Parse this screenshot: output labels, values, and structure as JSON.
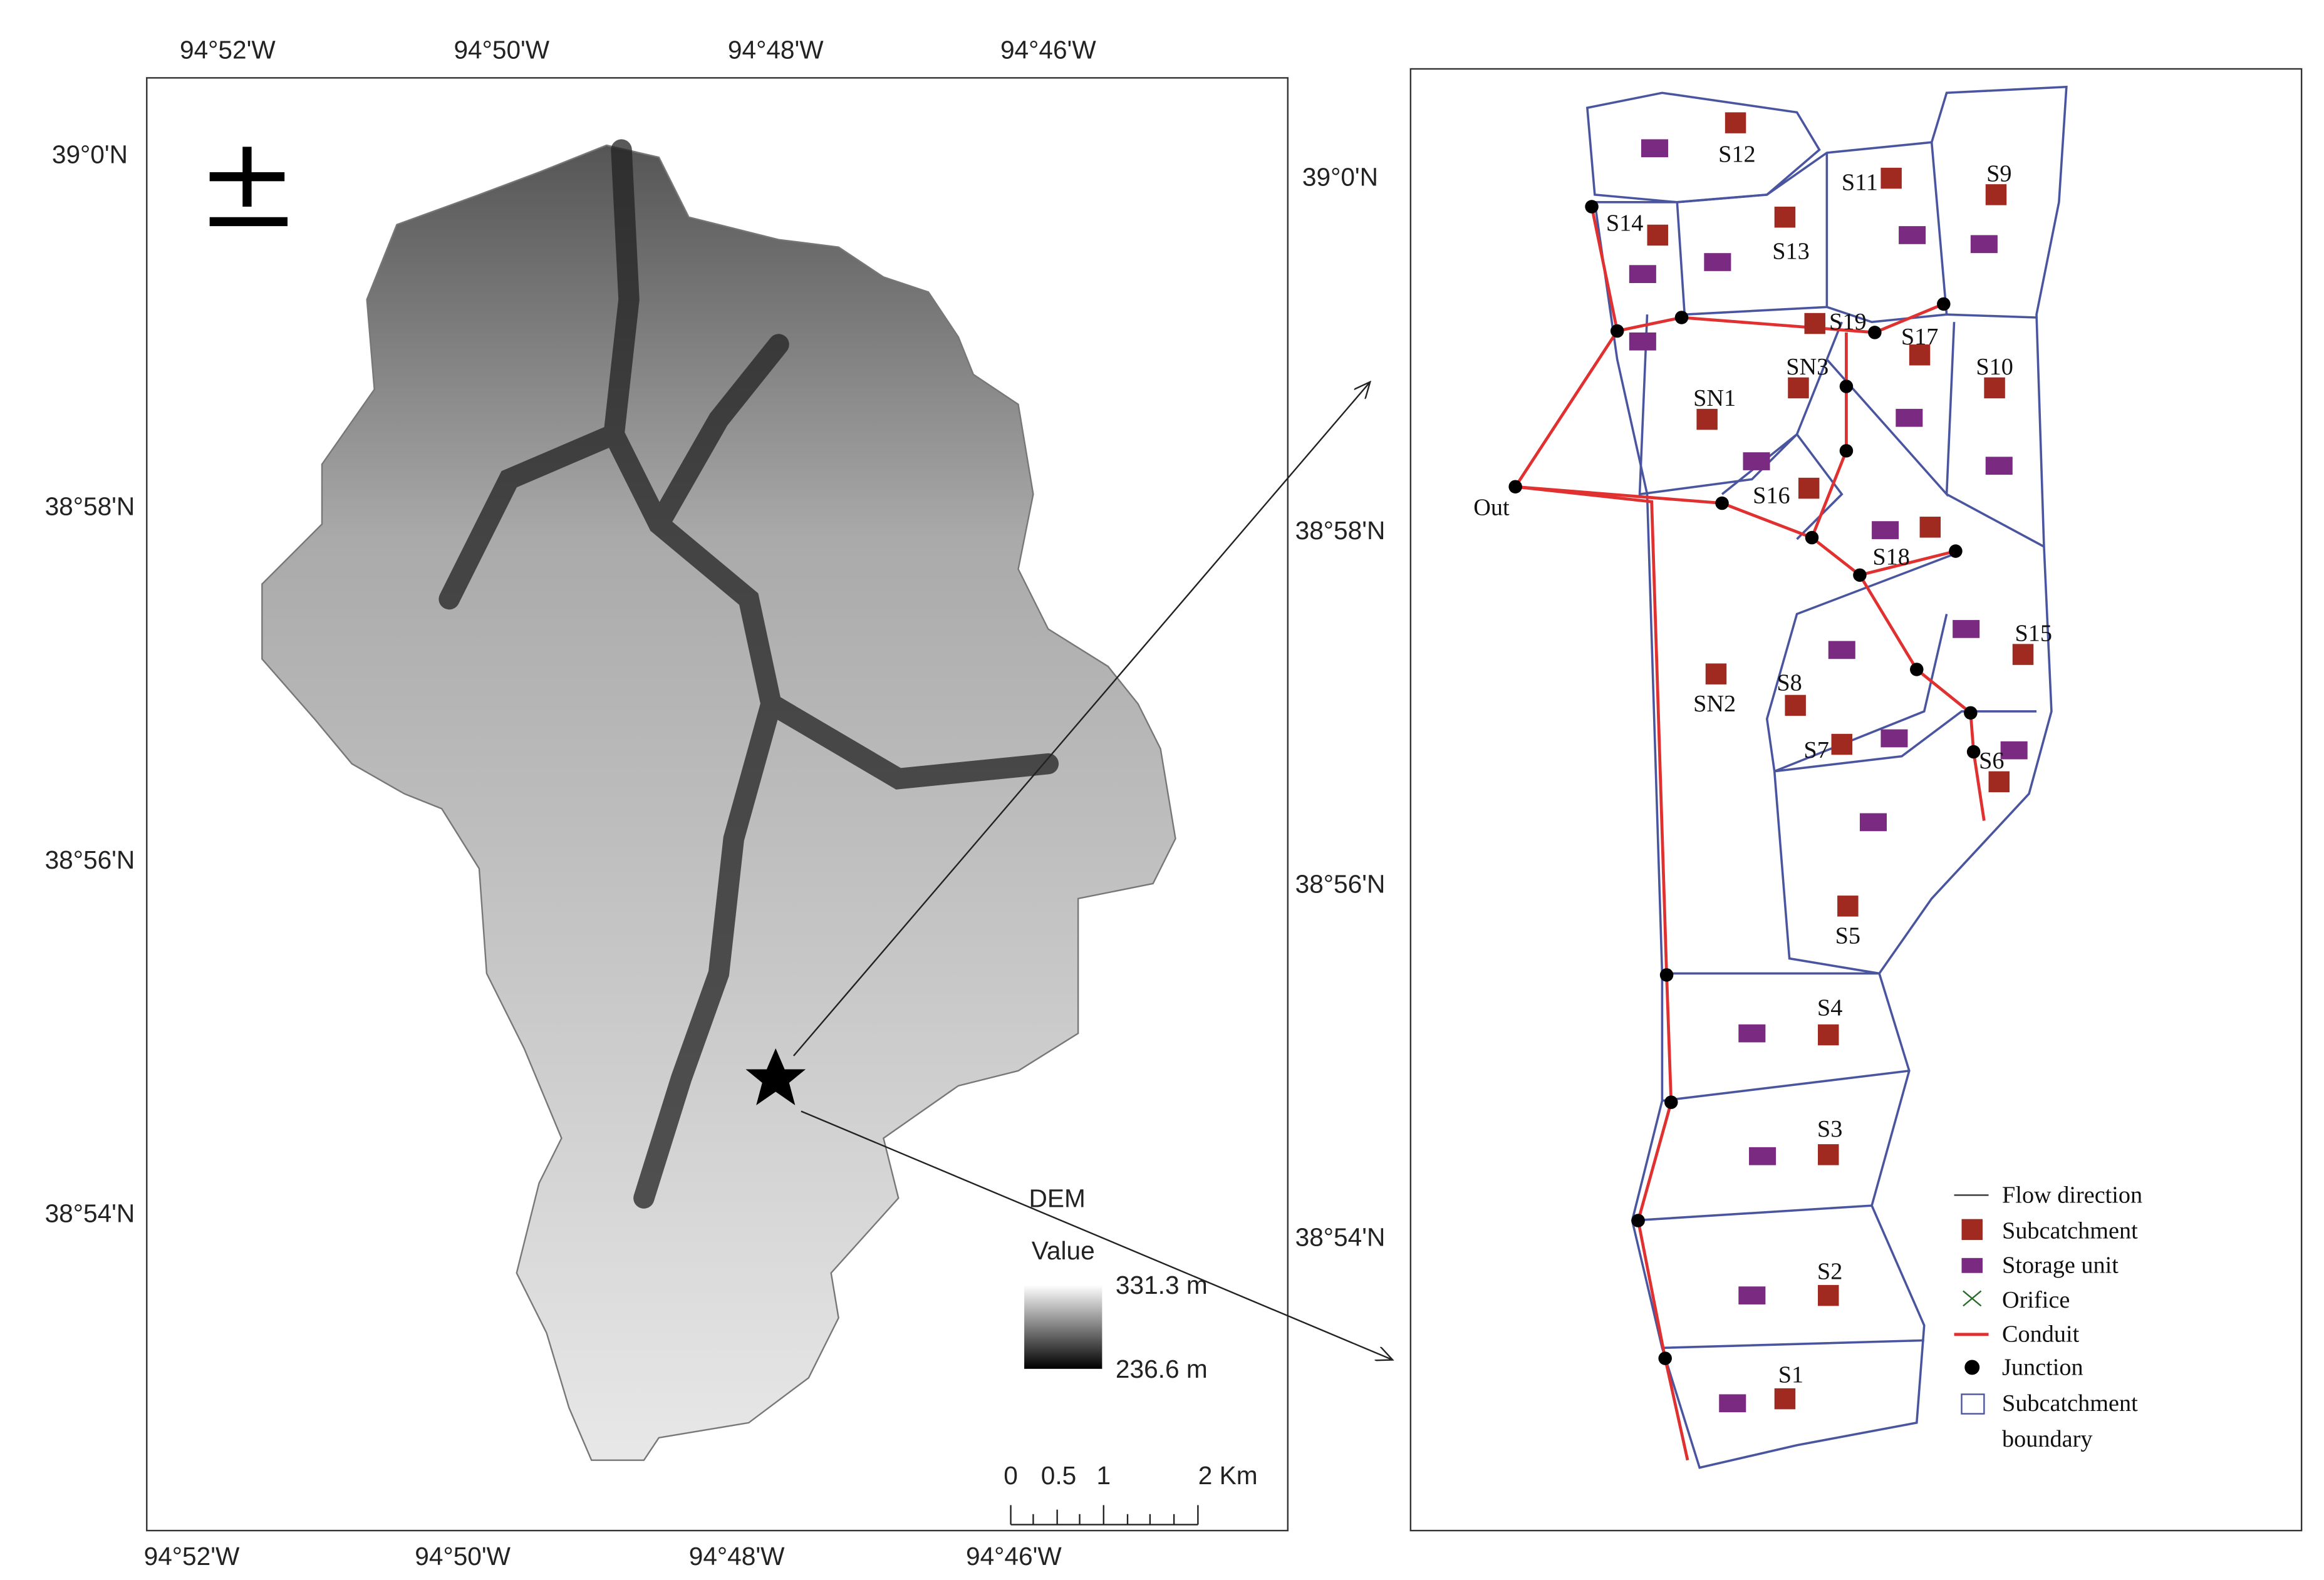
{
  "left_map": {
    "top_lon_labels": [
      "94°52'W",
      "94°50'W",
      "94°48'W",
      "94°46'W"
    ],
    "bottom_lon_labels": [
      "94°52'W",
      "94°50'W",
      "94°48'W",
      "94°46'W"
    ],
    "left_lat_labels": [
      "39°0'N",
      "38°58'N",
      "38°56'N",
      "38°54'N"
    ],
    "right_lat_labels": [
      "39°0'N",
      "38°58'N",
      "38°56'N",
      "38°54'N"
    ],
    "legend": {
      "title": "DEM",
      "subtitle": "Value",
      "max": "331.3 m",
      "min": "236.6 m"
    },
    "scale_bar": [
      "0",
      "0.5",
      "1",
      "2 Km"
    ]
  },
  "right_map": {
    "labels": [
      "S12",
      "S11",
      "S9",
      "S14",
      "S13",
      "S19",
      "S17",
      "SN3",
      "S10",
      "SN1",
      "S16",
      "Out",
      "S18",
      "S15",
      "SN2",
      "S8",
      "S7",
      "S6",
      "S5",
      "S4",
      "S3",
      "S2",
      "S1"
    ],
    "legend": [
      {
        "label": "Flow direction"
      },
      {
        "label": "Subcatchment"
      },
      {
        "label": "Storage unit"
      },
      {
        "label": "Orifice"
      },
      {
        "label": "Conduit"
      },
      {
        "label": "Junction"
      },
      {
        "label_lines": [
          "Subcatchment",
          "boundary"
        ]
      }
    ]
  }
}
